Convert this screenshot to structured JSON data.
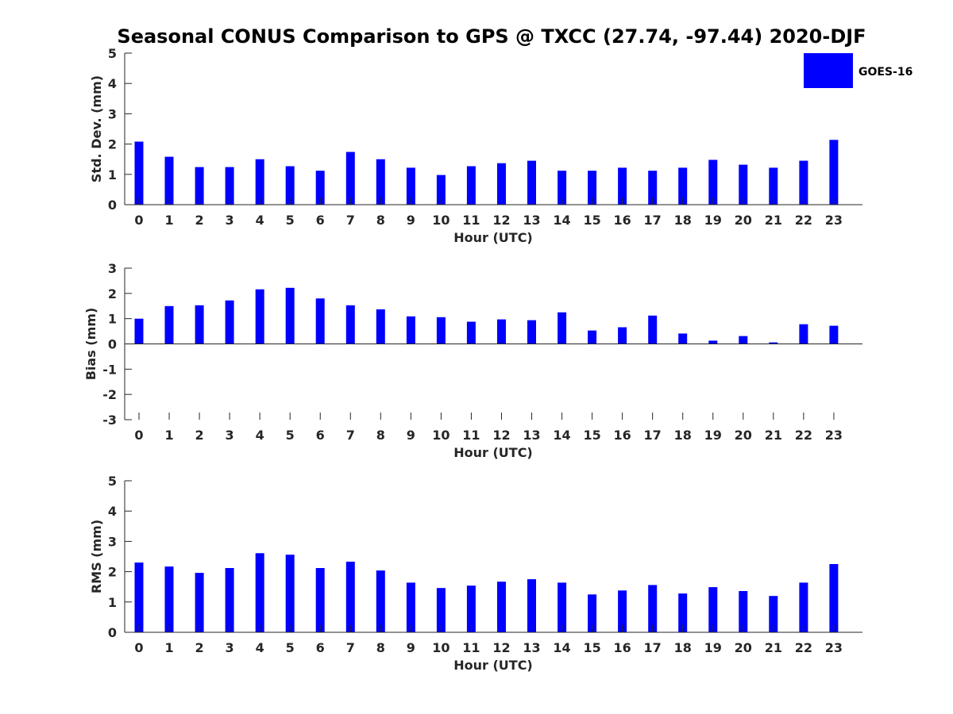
{
  "title": "Seasonal CONUS Comparison to GPS @ TXCC (27.74, -97.44) 2020-DJF",
  "legend": {
    "label": "GOES-16",
    "color": "#0000ff",
    "placement": "top-right"
  },
  "chart_data": [
    {
      "type": "bar",
      "ylabel": "Std. Dev. (mm)",
      "xlabel": "Hour (UTC)",
      "categories": [
        "0",
        "1",
        "2",
        "3",
        "4",
        "5",
        "6",
        "7",
        "8",
        "9",
        "10",
        "11",
        "12",
        "13",
        "14",
        "15",
        "16",
        "17",
        "18",
        "19",
        "20",
        "21",
        "22",
        "23"
      ],
      "ylim": [
        0,
        5
      ],
      "yticks": [
        "0",
        "1",
        "2",
        "3",
        "4",
        "5"
      ],
      "series": [
        {
          "name": "GOES-16",
          "values": [
            2.08,
            1.58,
            1.24,
            1.24,
            1.5,
            1.27,
            1.12,
            1.74,
            1.5,
            1.22,
            0.98,
            1.27,
            1.37,
            1.45,
            1.12,
            1.12,
            1.22,
            1.12,
            1.22,
            1.48,
            1.32,
            1.22,
            1.45,
            2.14
          ]
        }
      ]
    },
    {
      "type": "bar",
      "ylabel": "Bias (mm)",
      "xlabel": "Hour (UTC)",
      "categories": [
        "0",
        "1",
        "2",
        "3",
        "4",
        "5",
        "6",
        "7",
        "8",
        "9",
        "10",
        "11",
        "12",
        "13",
        "14",
        "15",
        "16",
        "17",
        "18",
        "19",
        "20",
        "21",
        "22",
        "23"
      ],
      "ylim": [
        -3,
        3
      ],
      "yticks": [
        "-3",
        "-2",
        "-1",
        "0",
        "1",
        "2",
        "3"
      ],
      "series": [
        {
          "name": "GOES-16",
          "values": [
            1.0,
            1.5,
            1.53,
            1.72,
            2.16,
            2.22,
            1.8,
            1.53,
            1.37,
            1.09,
            1.06,
            0.88,
            0.97,
            0.94,
            1.25,
            0.53,
            0.66,
            1.12,
            0.41,
            0.13,
            0.31,
            0.06,
            0.78,
            0.72
          ]
        }
      ]
    },
    {
      "type": "bar",
      "ylabel": "RMS (mm)",
      "xlabel": "Hour (UTC)",
      "categories": [
        "0",
        "1",
        "2",
        "3",
        "4",
        "5",
        "6",
        "7",
        "8",
        "9",
        "10",
        "11",
        "12",
        "13",
        "14",
        "15",
        "16",
        "17",
        "18",
        "19",
        "20",
        "21",
        "22",
        "23"
      ],
      "ylim": [
        0,
        5
      ],
      "yticks": [
        "0",
        "1",
        "2",
        "3",
        "4",
        "5"
      ],
      "series": [
        {
          "name": "GOES-16",
          "values": [
            2.3,
            2.17,
            1.96,
            2.12,
            2.61,
            2.56,
            2.12,
            2.33,
            2.04,
            1.64,
            1.46,
            1.54,
            1.67,
            1.75,
            1.64,
            1.25,
            1.38,
            1.56,
            1.28,
            1.49,
            1.36,
            1.2,
            1.64,
            2.25
          ]
        }
      ]
    }
  ]
}
